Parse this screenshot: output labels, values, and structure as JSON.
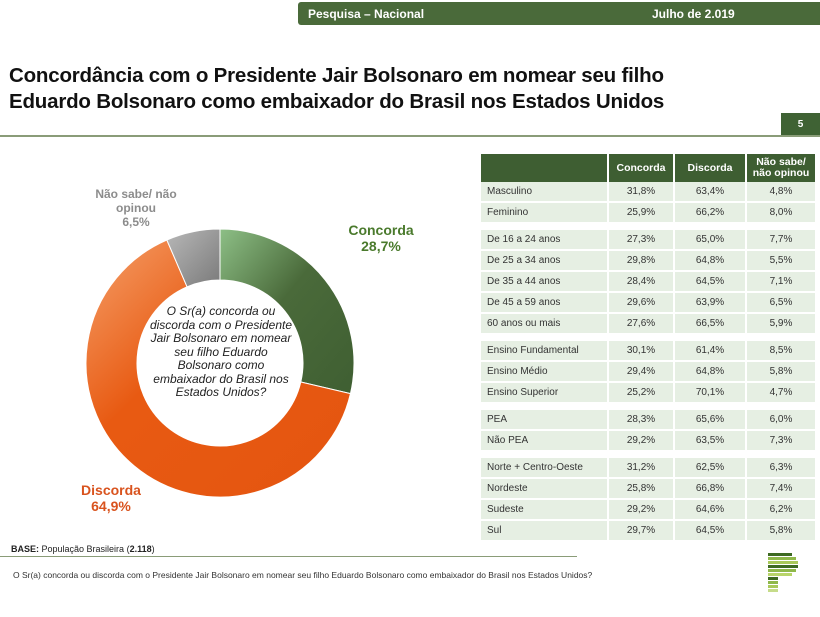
{
  "header": {
    "survey": "Pesquisa – Nacional",
    "date": "Julho de 2.019"
  },
  "title_line1": "Concordância com o Presidente Jair Bolsonaro em nomear seu filho",
  "title_line2": "Eduardo Bolsonaro como embaixador do Brasil nos Estados Unidos",
  "page_number": "5",
  "colors": {
    "brand_green": "#3e5e32",
    "concorda": "#4a6a3a",
    "discorda": "#e85a12",
    "nao_sabe": "#8a8a8a"
  },
  "chart_data": {
    "type": "pie",
    "variant": "donut",
    "title": "",
    "center_text": "O Sr(a) concorda ou discorda com o Presidente Jair Bolsonaro em nomear seu filho Eduardo Bolsonaro como embaixador do Brasil nos Estados Unidos?",
    "center_lines": [
      "O Sr(a) concorda ou",
      "discorda com o Presidente",
      "Jair Bolsonaro em nomear",
      "seu filho Eduardo",
      "Bolsonaro como",
      "embaixador do Brasil nos",
      "Estados Unidos?"
    ],
    "slices": [
      {
        "label": "Concorda",
        "value": 28.7,
        "display": "28,7%",
        "color": "#4a6a3a"
      },
      {
        "label": "Discorda",
        "value": 64.9,
        "display": "64,9%",
        "color": "#e85a12"
      },
      {
        "label": "Não sabe/ não opinou",
        "value": 6.5,
        "display": "6,5%",
        "color": "#8a8a8a"
      }
    ],
    "label_lines": {
      "nao_sabe": [
        "Não sabe/ não",
        "opinou",
        "6,5%"
      ],
      "concorda": [
        "Concorda",
        "28,7%"
      ],
      "discorda": [
        "Discorda",
        "64,9%"
      ]
    }
  },
  "table": {
    "headers": [
      "",
      "Concorda",
      "Discorda",
      "Não sabe/ não opinou"
    ],
    "header_ns_lines": [
      "Não sabe/",
      "não opinou"
    ],
    "groups": [
      [
        [
          "Masculino",
          "31,8%",
          "63,4%",
          "4,8%"
        ],
        [
          "Feminino",
          "25,9%",
          "66,2%",
          "8,0%"
        ]
      ],
      [
        [
          "De 16 a 24 anos",
          "27,3%",
          "65,0%",
          "7,7%"
        ],
        [
          "De 25 a 34 anos",
          "29,8%",
          "64,8%",
          "5,5%"
        ],
        [
          "De 35 a 44 anos",
          "28,4%",
          "64,5%",
          "7,1%"
        ],
        [
          "De 45 a 59 anos",
          "29,6%",
          "63,9%",
          "6,5%"
        ],
        [
          "60 anos ou mais",
          "27,6%",
          "66,5%",
          "5,9%"
        ]
      ],
      [
        [
          "Ensino Fundamental",
          "30,1%",
          "61,4%",
          "8,5%"
        ],
        [
          "Ensino Médio",
          "29,4%",
          "64,8%",
          "5,8%"
        ],
        [
          "Ensino Superior",
          "25,2%",
          "70,1%",
          "4,7%"
        ]
      ],
      [
        [
          "PEA",
          "28,3%",
          "65,6%",
          "6,0%"
        ],
        [
          "Não PEA",
          "29,2%",
          "63,5%",
          "7,3%"
        ]
      ],
      [
        [
          "Norte + Centro-Oeste",
          "31,2%",
          "62,5%",
          "6,3%"
        ],
        [
          "Nordeste",
          "25,8%",
          "66,8%",
          "7,4%"
        ],
        [
          "Sudeste",
          "29,2%",
          "64,6%",
          "6,2%"
        ],
        [
          "Sul",
          "29,7%",
          "64,5%",
          "5,8%"
        ]
      ]
    ]
  },
  "base": {
    "label": "BASE:",
    "text": " População Brasileira (",
    "n": "2.118",
    "close": ")"
  },
  "footer_question": "O Sr(a) concorda ou discorda com o Presidente Jair Bolsonaro em nomear seu filho Eduardo Bolsonaro como embaixador do Brasil nos Estados Unidos?",
  "logo": "brand-logo"
}
